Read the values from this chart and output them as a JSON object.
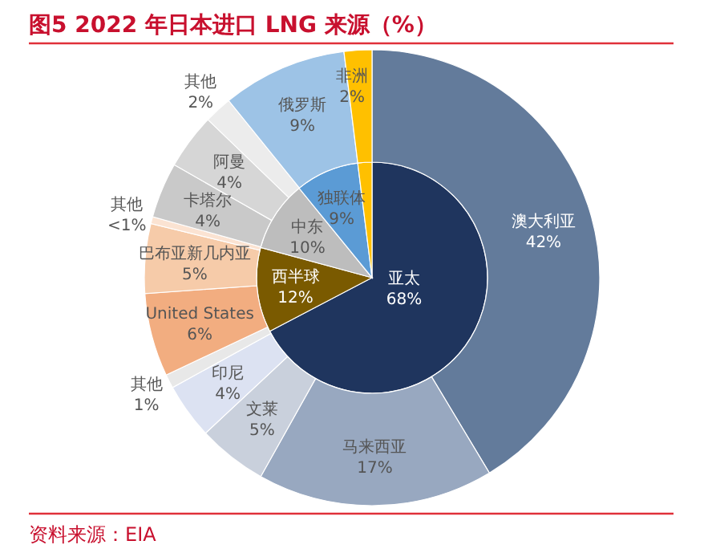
{
  "chart_data": [
    {
      "type": "pie",
      "title": "图5  2022 年日本进口 LNG 来源（%）",
      "categories": [
        "亚太",
        "西半球",
        "中东",
        "独联体",
        null
      ],
      "values": [
        68,
        12,
        10,
        9,
        2
      ],
      "value_labels": [
        "68%",
        "12%",
        "10%",
        "9%",
        null
      ],
      "colors": [
        "#1f355e",
        "#7a5a00",
        "#bdbdbd",
        "#5b9bd5",
        "#ffc000"
      ],
      "annotations": [
        "资料来源：EIA"
      ]
    },
    {
      "type": "donut",
      "categories": [
        "澳大利亚",
        "马来西亚",
        "文莱",
        "印尼",
        "其他",
        "United States",
        "巴布亚新几内亚",
        "其他",
        "卡塔尔",
        "阿曼",
        "其他",
        "俄罗斯",
        "非洲"
      ],
      "values": [
        42,
        17,
        5,
        4,
        1,
        6,
        5,
        0.5,
        4,
        4,
        2,
        9,
        2
      ],
      "value_labels": [
        "42%",
        "17%",
        "5%",
        "4%",
        "1%",
        "6%",
        "5%",
        "<1%",
        "4%",
        "4%",
        "2%",
        "9%",
        "2%"
      ],
      "colors": [
        "#637b9b",
        "#98a8c0",
        "#c9d0dc",
        "#dce2f2",
        "#e8e8e8",
        "#f2ad80",
        "#f6cba9",
        "#fbe3d2",
        "#c9c9c9",
        "#d6d6d6",
        "#ececec",
        "#9dc3e6",
        "#ffc000"
      ]
    }
  ]
}
